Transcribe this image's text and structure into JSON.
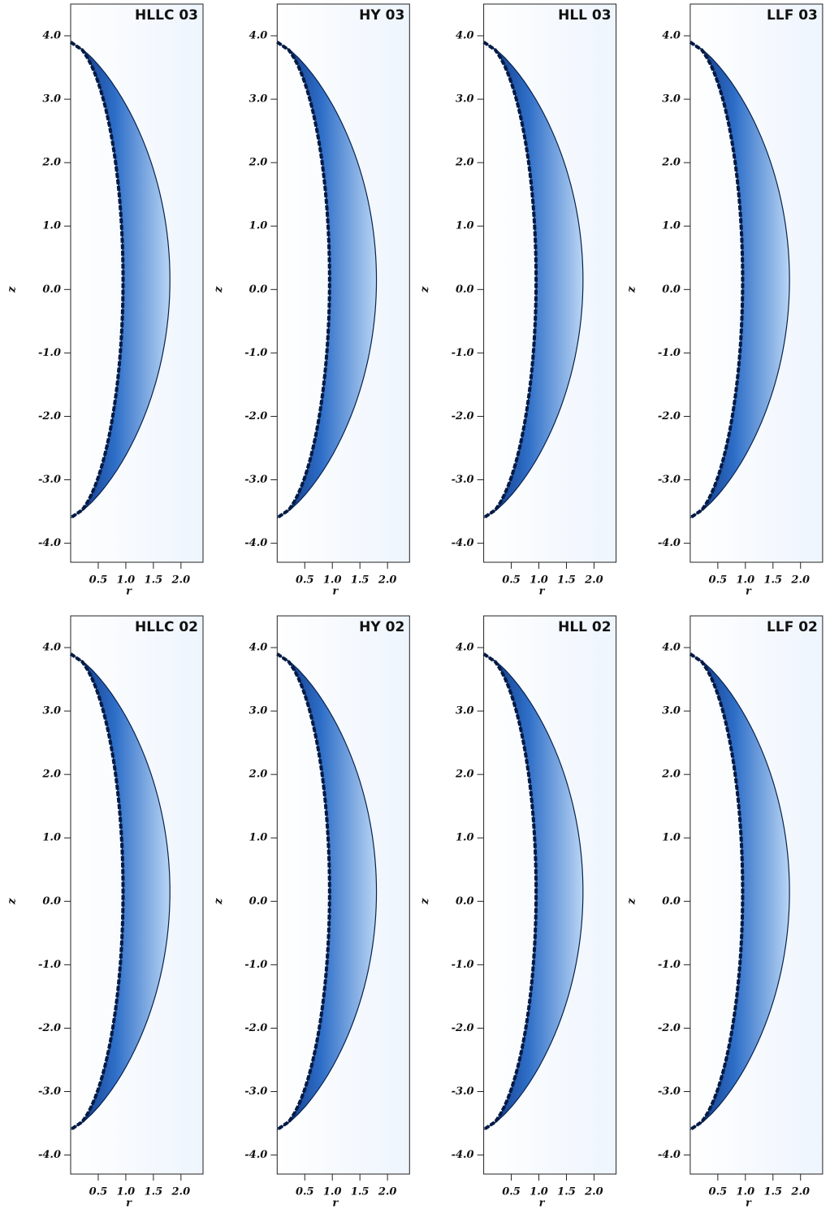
{
  "chart_data": [
    {
      "type": "image",
      "title": "HLLC 03",
      "xlabel": "r",
      "ylabel": "z",
      "xlim": [
        0,
        2.4
      ],
      "ylim": [
        -4.3,
        4.5
      ],
      "xticks": [
        0.5,
        {
          "value": 1,
          "label": "1.0"
        },
        1.5,
        {
          "value": 2,
          "label": "2.0"
        }
      ],
      "yticks": [
        {
          "value": -4,
          "label": "-4.0"
        },
        {
          "value": -3,
          "label": "-3.0"
        },
        {
          "value": -2,
          "label": "-2.0"
        },
        {
          "value": -1,
          "label": "-1.0"
        },
        {
          "value": 0,
          "label": "0.0"
        },
        {
          "value": 1,
          "label": "1.0"
        },
        {
          "value": 2,
          "label": "2.0"
        },
        {
          "value": 3,
          "label": "3.0"
        },
        {
          "value": 4,
          "label": "4.0"
        }
      ]
    },
    {
      "type": "image",
      "title": "HY 03",
      "xlabel": "r",
      "ylabel": "z",
      "xlim": [
        0,
        2.4
      ],
      "ylim": [
        -4.3,
        4.5
      ],
      "xticks": [
        0.5,
        {
          "value": 1,
          "label": "1.0"
        },
        1.5,
        {
          "value": 2,
          "label": "2.0"
        }
      ],
      "yticks": [
        {
          "value": -4,
          "label": "-4.0"
        },
        {
          "value": -3,
          "label": "-3.0"
        },
        {
          "value": -2,
          "label": "-2.0"
        },
        {
          "value": -1,
          "label": "-1.0"
        },
        {
          "value": 0,
          "label": "0.0"
        },
        {
          "value": 1,
          "label": "1.0"
        },
        {
          "value": 2,
          "label": "2.0"
        },
        {
          "value": 3,
          "label": "3.0"
        },
        {
          "value": 4,
          "label": "4.0"
        }
      ]
    },
    {
      "type": "image",
      "title": "HLL 03",
      "xlabel": "r",
      "ylabel": "z",
      "xlim": [
        0,
        2.4
      ],
      "ylim": [
        -4.3,
        4.5
      ],
      "xticks": [
        0.5,
        {
          "value": 1,
          "label": "1.0"
        },
        1.5,
        {
          "value": 2,
          "label": "2.0"
        }
      ],
      "yticks": [
        {
          "value": -4,
          "label": "-4.0"
        },
        {
          "value": -3,
          "label": "-3.0"
        },
        {
          "value": -2,
          "label": "-2.0"
        },
        {
          "value": -1,
          "label": "-1.0"
        },
        {
          "value": 0,
          "label": "0.0"
        },
        {
          "value": 1,
          "label": "1.0"
        },
        {
          "value": 2,
          "label": "2.0"
        },
        {
          "value": 3,
          "label": "3.0"
        },
        {
          "value": 4,
          "label": "4.0"
        }
      ]
    },
    {
      "type": "image",
      "title": "LLF 03",
      "xlabel": "r",
      "ylabel": "z",
      "xlim": [
        0,
        2.4
      ],
      "ylim": [
        -4.3,
        4.5
      ],
      "xticks": [
        0.5,
        {
          "value": 1,
          "label": "1.0"
        },
        1.5,
        {
          "value": 2,
          "label": "2.0"
        }
      ],
      "yticks": [
        {
          "value": -4,
          "label": "-4.0"
        },
        {
          "value": -3,
          "label": "-3.0"
        },
        {
          "value": -2,
          "label": "-2.0"
        },
        {
          "value": -1,
          "label": "-1.0"
        },
        {
          "value": 0,
          "label": "0.0"
        },
        {
          "value": 1,
          "label": "1.0"
        },
        {
          "value": 2,
          "label": "2.0"
        },
        {
          "value": 3,
          "label": "3.0"
        },
        {
          "value": 4,
          "label": "4.0"
        }
      ]
    },
    {
      "type": "image",
      "title": "HLLC 02",
      "xlabel": "r",
      "ylabel": "z",
      "xlim": [
        0,
        2.4
      ],
      "ylim": [
        -4.3,
        4.5
      ],
      "xticks": [
        0.5,
        {
          "value": 1,
          "label": "1.0"
        },
        1.5,
        {
          "value": 2,
          "label": "2.0"
        }
      ],
      "yticks": [
        {
          "value": -4,
          "label": "-4.0"
        },
        {
          "value": -3,
          "label": "-3.0"
        },
        {
          "value": -2,
          "label": "-2.0"
        },
        {
          "value": -1,
          "label": "-1.0"
        },
        {
          "value": 0,
          "label": "0.0"
        },
        {
          "value": 1,
          "label": "1.0"
        },
        {
          "value": 2,
          "label": "2.0"
        },
        {
          "value": 3,
          "label": "3.0"
        },
        {
          "value": 4,
          "label": "4.0"
        }
      ]
    },
    {
      "type": "image",
      "title": "HY 02",
      "xlabel": "r",
      "ylabel": "z",
      "xlim": [
        0,
        2.4
      ],
      "ylim": [
        -4.3,
        4.5
      ],
      "xticks": [
        0.5,
        {
          "value": 1,
          "label": "1.0"
        },
        1.5,
        {
          "value": 2,
          "label": "2.0"
        }
      ],
      "yticks": [
        {
          "value": -4,
          "label": "-4.0"
        },
        {
          "value": -3,
          "label": "-3.0"
        },
        {
          "value": -2,
          "label": "-2.0"
        },
        {
          "value": -1,
          "label": "-1.0"
        },
        {
          "value": 0,
          "label": "0.0"
        },
        {
          "value": 1,
          "label": "1.0"
        },
        {
          "value": 2,
          "label": "2.0"
        },
        {
          "value": 3,
          "label": "3.0"
        },
        {
          "value": 4,
          "label": "4.0"
        }
      ]
    },
    {
      "type": "image",
      "title": "HLL 02",
      "xlabel": "r",
      "ylabel": "z",
      "xlim": [
        0,
        2.4
      ],
      "ylim": [
        -4.3,
        4.5
      ],
      "xticks": [
        0.5,
        {
          "value": 1,
          "label": "1.0"
        },
        1.5,
        {
          "value": 2,
          "label": "2.0"
        }
      ],
      "yticks": [
        {
          "value": -4,
          "label": "-4.0"
        },
        {
          "value": -3,
          "label": "-3.0"
        },
        {
          "value": -2,
          "label": "-2.0"
        },
        {
          "value": -1,
          "label": "-1.0"
        },
        {
          "value": 0,
          "label": "0.0"
        },
        {
          "value": 1,
          "label": "1.0"
        },
        {
          "value": 2,
          "label": "2.0"
        },
        {
          "value": 3,
          "label": "3.0"
        },
        {
          "value": 4,
          "label": "4.0"
        }
      ]
    },
    {
      "type": "image",
      "title": "LLF 02",
      "xlabel": "r",
      "ylabel": "z",
      "xlim": [
        0,
        2.4
      ],
      "ylim": [
        -4.3,
        4.5
      ],
      "xticks": [
        0.5,
        {
          "value": 1,
          "label": "1.0"
        },
        1.5,
        {
          "value": 2,
          "label": "2.0"
        }
      ],
      "yticks": [
        {
          "value": -4,
          "label": "-4.0"
        },
        {
          "value": -3,
          "label": "-3.0"
        },
        {
          "value": -2,
          "label": "-2.0"
        },
        {
          "value": -1,
          "label": "-1.0"
        },
        {
          "value": 0,
          "label": "0.0"
        },
        {
          "value": 1,
          "label": "1.0"
        },
        {
          "value": 2,
          "label": "2.0"
        },
        {
          "value": 3,
          "label": "3.0"
        },
        {
          "value": 4,
          "label": "4.0"
        }
      ]
    }
  ]
}
